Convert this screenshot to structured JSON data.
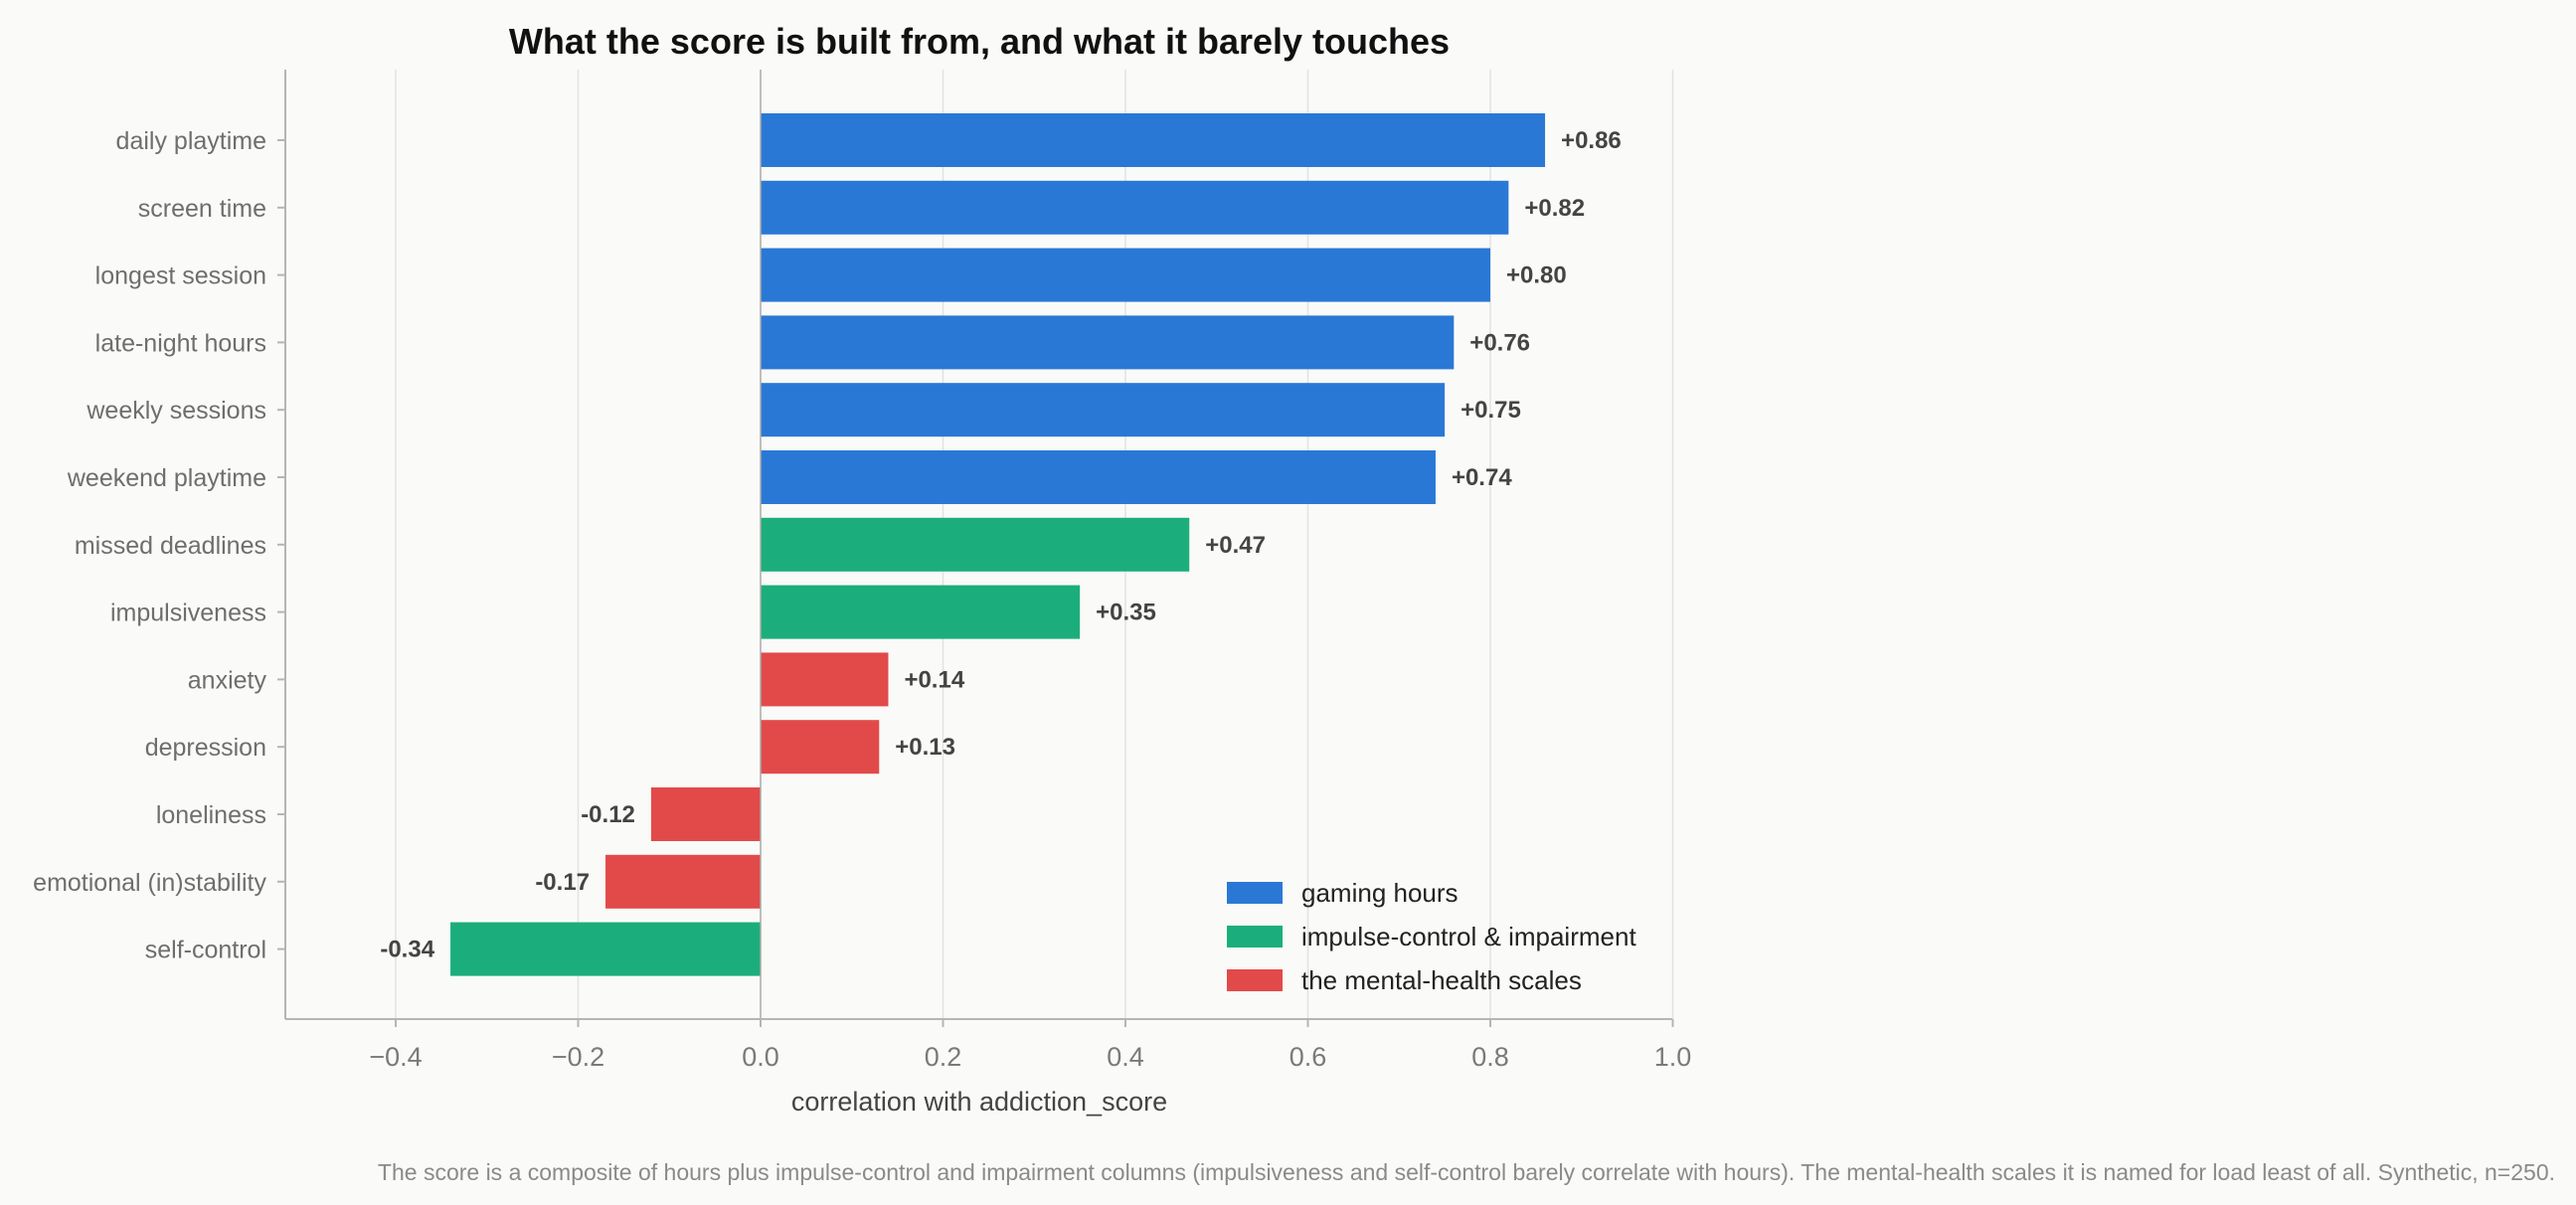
{
  "chart_data": {
    "type": "bar",
    "orientation": "horizontal",
    "title": "What the score is built from, and what it barely touches",
    "xlabel": "correlation with addiction_score",
    "ylabel": "",
    "xlim": [
      -0.52,
      1.0
    ],
    "xticks": [
      -0.4,
      -0.2,
      0.0,
      0.2,
      0.4,
      0.6,
      0.8,
      1.0
    ],
    "xtick_labels": [
      "−0.4",
      "−0.2",
      "0.0",
      "0.2",
      "0.4",
      "0.6",
      "0.8",
      "1.0"
    ],
    "grid": "vertical",
    "legend_position": "lower-right",
    "categories": [
      "daily playtime",
      "screen time",
      "longest session",
      "late-night hours",
      "weekly sessions",
      "weekend playtime",
      "missed deadlines",
      "impulsiveness",
      "anxiety",
      "depression",
      "loneliness",
      "emotional (in)stability",
      "self-control"
    ],
    "values": [
      0.86,
      0.82,
      0.8,
      0.76,
      0.75,
      0.74,
      0.47,
      0.35,
      0.14,
      0.13,
      -0.12,
      -0.17,
      -0.34
    ],
    "value_labels": [
      "+0.86",
      "+0.82",
      "+0.80",
      "+0.76",
      "+0.75",
      "+0.74",
      "+0.47",
      "+0.35",
      "+0.14",
      "+0.13",
      "-0.12",
      "-0.17",
      "-0.34"
    ],
    "groups": [
      "gaming hours",
      "gaming hours",
      "gaming hours",
      "gaming hours",
      "gaming hours",
      "gaming hours",
      "impulse-control & impairment",
      "impulse-control & impairment",
      "the mental-health scales",
      "the mental-health scales",
      "the mental-health scales",
      "the mental-health scales",
      "impulse-control & impairment"
    ],
    "legend": [
      {
        "name": "gaming hours",
        "color": "#2a78d6"
      },
      {
        "name": "impulse-control & impairment",
        "color": "#1bae7c"
      },
      {
        "name": "the mental-health scales",
        "color": "#e24a4a"
      }
    ],
    "footnote": "The score is a composite of hours plus impulse-control and impairment columns (impulsiveness and self-control barely correlate with hours). The mental-health scales it is named for load least of all. Synthetic, n=250."
  }
}
